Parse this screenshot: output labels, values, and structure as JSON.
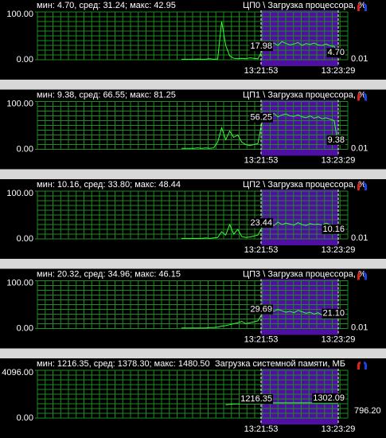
{
  "chart_data": [
    {
      "type": "line",
      "stats": "мин: 4.70, сред: 31.24; макс: 42.95",
      "title": "ЦП0 \\ Загрузка процессора, %",
      "ylim": [
        0,
        100
      ],
      "yticks": [
        {
          "value": 0,
          "label": "0.00"
        },
        {
          "value": 100,
          "label": "100.00"
        }
      ],
      "color": "#33ff33",
      "values": [
        1,
        1,
        1,
        1,
        1.5,
        1,
        1,
        2,
        1,
        1.5,
        80,
        30,
        8,
        3,
        2,
        3,
        2,
        4,
        3,
        2,
        17.98,
        33,
        32,
        35,
        30,
        38,
        34,
        31,
        33,
        36,
        30,
        34,
        32,
        35,
        31,
        30,
        33,
        29,
        28,
        4.7
      ],
      "markers": {
        "times": [
          "13:21:53",
          "13:23:29"
        ],
        "values": [
          17.98,
          4.7
        ],
        "value_labels": [
          "17.98",
          "4.70"
        ]
      },
      "current_label": "0.01"
    },
    {
      "type": "line",
      "stats": "мин: 9.38, сред: 66.55; макс: 81.25",
      "title": "ЦП1 \\ Загрузка процессора, %",
      "ylim": [
        0,
        100
      ],
      "yticks": [
        {
          "value": 0,
          "label": "0.00"
        },
        {
          "value": 100,
          "label": "100.00"
        }
      ],
      "color": "#33ff33",
      "values": [
        2,
        2,
        2,
        2,
        3,
        2,
        3,
        2,
        3,
        15,
        45,
        20,
        38,
        25,
        30,
        15,
        10,
        8,
        10,
        12,
        56.25,
        72,
        70,
        75,
        68,
        72,
        74,
        70,
        69,
        72,
        68,
        66,
        70,
        65,
        68,
        64,
        66,
        63,
        60,
        9.38
      ],
      "markers": {
        "times": [
          "13:21:53",
          "13:23:29"
        ],
        "values": [
          56.25,
          9.38
        ],
        "value_labels": [
          "56.25",
          "9.38"
        ]
      },
      "current_label": "0.01"
    },
    {
      "type": "line",
      "stats": "мин: 10.16, сред: 33.80; макс: 48.44",
      "title": "ЦП2 \\ Загрузка процессора, %",
      "ylim": [
        0,
        100
      ],
      "yticks": [
        {
          "value": 0,
          "label": "0.00"
        },
        {
          "value": 100,
          "label": "100.00"
        }
      ],
      "color": "#33ff33",
      "values": [
        1,
        1,
        1,
        1,
        1,
        1,
        2,
        1,
        2,
        3,
        15,
        8,
        30,
        10,
        20,
        5,
        3,
        4,
        6,
        8,
        23.44,
        30,
        32,
        28,
        35,
        30,
        33,
        31,
        29,
        34,
        30,
        28,
        32,
        30,
        31,
        29,
        33,
        30,
        28,
        10.16
      ],
      "markers": {
        "times": [
          "13:21:53",
          "13:23:29"
        ],
        "values": [
          23.44,
          10.16
        ],
        "value_labels": [
          "23.44",
          "10.16"
        ]
      },
      "current_label": "0.01"
    },
    {
      "type": "line",
      "stats": "мин: 20.32, сред: 34.96; макс: 46.15",
      "title": "ЦП3 \\ Загрузка процессора, %",
      "ylim": [
        0,
        100
      ],
      "yticks": [
        {
          "value": 0,
          "label": "0.00"
        },
        {
          "value": 100,
          "label": "100.00"
        }
      ],
      "color": "#33ff33",
      "values": [
        1,
        1,
        1,
        1,
        1,
        1,
        1,
        2,
        2,
        3,
        5,
        6,
        8,
        10,
        12,
        15,
        10,
        12,
        14,
        16,
        29.69,
        35,
        38,
        36,
        40,
        37,
        34,
        36,
        33,
        38,
        35,
        32,
        34,
        30,
        33,
        28,
        31,
        29,
        27,
        21.1
      ],
      "markers": {
        "times": [
          "13:21:53",
          "13:23:29"
        ],
        "values": [
          29.69,
          21.1
        ],
        "value_labels": [
          "29.69",
          "21.10"
        ]
      },
      "current_label": "0.01"
    },
    {
      "type": "line",
      "stats": "мин: 1216.35, сред: 1378.30; макс: 1480.50",
      "title": "Загрузка системной памяти, МБ",
      "ylim": [
        0,
        4096
      ],
      "yticks": [
        {
          "value": 0,
          "label": "0.00"
        },
        {
          "value": 4096,
          "label": "4096.00"
        }
      ],
      "color": "#33ff33",
      "values": [
        null,
        null,
        null,
        null,
        null,
        null,
        null,
        null,
        null,
        null,
        null,
        1150,
        1180,
        1200,
        1210,
        1216,
        1216,
        1216,
        1216,
        1216,
        1216.35,
        1300,
        1301,
        1302,
        1302,
        1302,
        1302,
        1302,
        1302,
        1302,
        1302,
        1302,
        1302,
        1302,
        1302,
        1302,
        1302,
        1302,
        1302,
        1302.09
      ],
      "markers": {
        "times": [
          "13:21:53",
          "13:23:29"
        ],
        "values": [
          1216.35,
          1302.09
        ],
        "value_labels": [
          "1216.35",
          "1302.09"
        ]
      },
      "current_label": "796.20"
    }
  ]
}
